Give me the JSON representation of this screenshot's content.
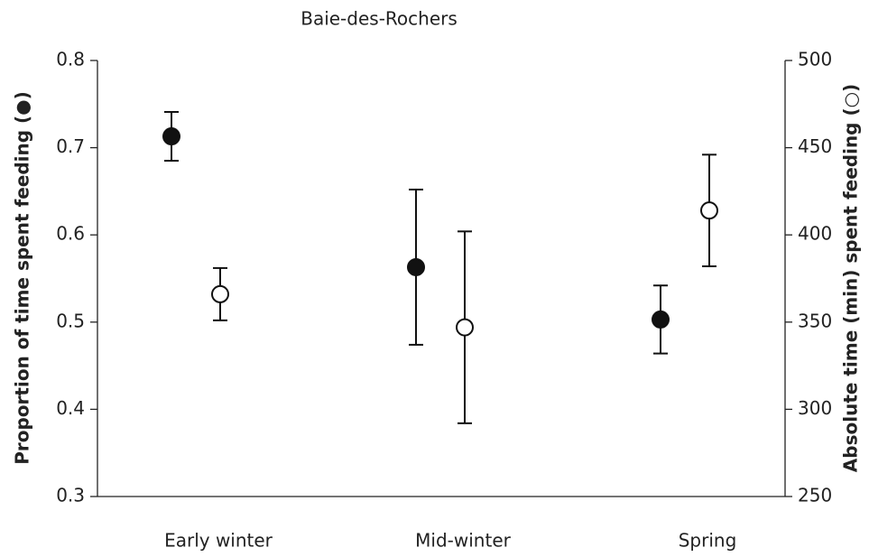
{
  "chart_data": {
    "type": "errorbar",
    "title": "Baie-des-Rochers",
    "categories": [
      "Early winter",
      "Mid-winter",
      "Spring"
    ],
    "ylabel": "Proportion of time spent feeding (●)",
    "y2label": "Absolute time (min) spent feeding (○)",
    "ylim": [
      0.3,
      0.8
    ],
    "yticks": [
      0.3,
      0.4,
      0.5,
      0.6,
      0.7,
      0.8
    ],
    "y2lim": [
      250,
      500
    ],
    "y2ticks": [
      250,
      300,
      350,
      400,
      450,
      500
    ],
    "series": [
      {
        "color": "#111111",
        "marker": "filled",
        "values": [
          0.713,
          0.563,
          0.503
        ],
        "errors": [
          0.028,
          0.089,
          0.039
        ]
      },
      {
        "color": "#111111",
        "marker": "open",
        "axis": "y2",
        "values": [
          366,
          347,
          414
        ],
        "errors": [
          15,
          55,
          32
        ]
      }
    ]
  }
}
